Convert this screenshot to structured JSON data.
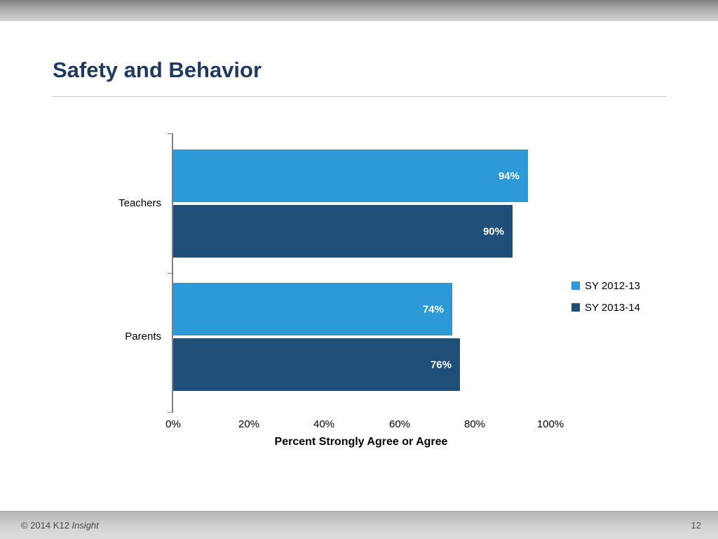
{
  "slide": {
    "title": "Safety and Behavior",
    "footer": {
      "copyright_prefix": "© 2014 K12 ",
      "brand_italic": "Insight",
      "page_number": "12"
    }
  },
  "chart_data": {
    "type": "bar",
    "orientation": "horizontal",
    "title": "",
    "categories": [
      "Teachers",
      "Parents"
    ],
    "series": [
      {
        "name": "SY 2012-13",
        "color": "#2B9AD6",
        "values": [
          94,
          74
        ]
      },
      {
        "name": "SY 2013-14",
        "color": "#1F4E79",
        "values": [
          90,
          76
        ]
      }
    ],
    "data_labels": [
      [
        "94%",
        "74%"
      ],
      [
        "90%",
        "76%"
      ]
    ],
    "xlabel": "Percent Strongly Agree or Agree",
    "x_ticks": [
      "0%",
      "20%",
      "40%",
      "60%",
      "80%",
      "100%"
    ],
    "xlim": [
      0,
      100
    ],
    "grid": false,
    "legend_position": "right",
    "data_label_color": "#ffffff"
  }
}
